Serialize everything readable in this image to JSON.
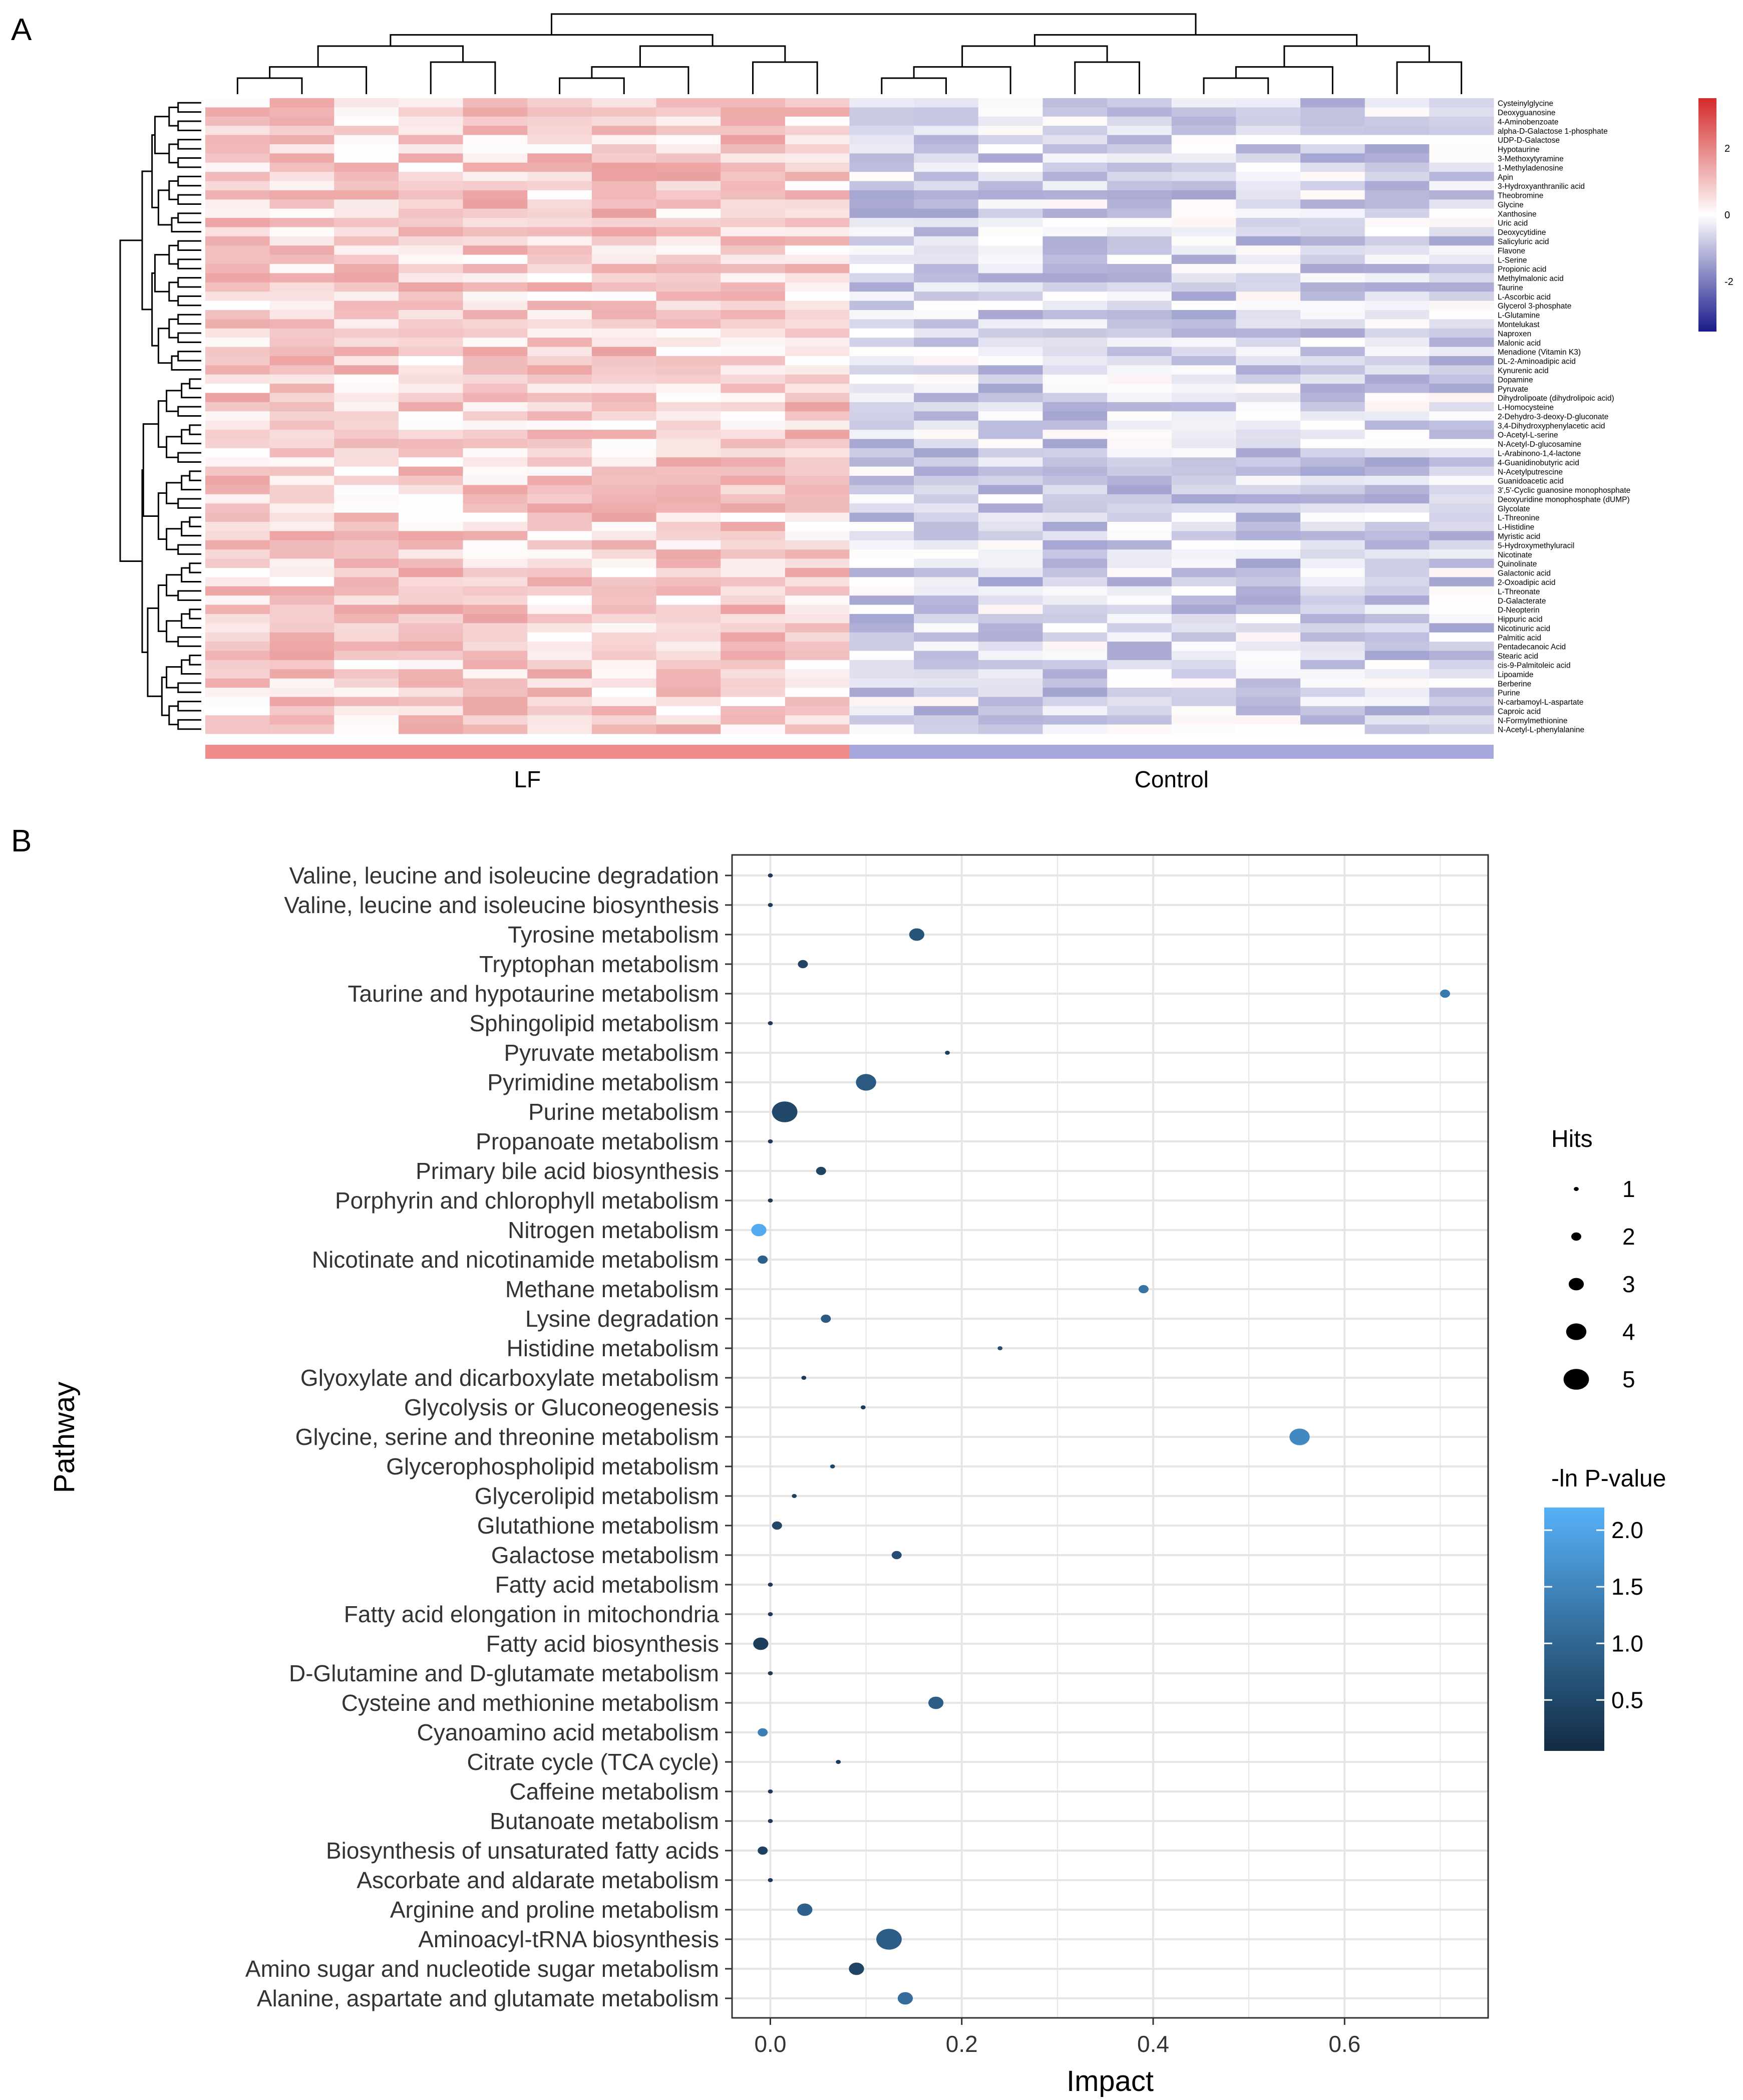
{
  "panels": {
    "a_label": "A",
    "b_label": "B"
  },
  "colors": {
    "high": "#d42a2a",
    "mid": "#ffffff",
    "low": "#1a1a8c",
    "lf_bar": "#f08b8b",
    "control_bar": "#a6a8dd",
    "pval_low": "#132b43",
    "pval_high": "#56b1f7",
    "axis": "#333333",
    "grid": "#e5e5e5"
  },
  "chart_data": [
    {
      "type": "heatmap",
      "title": "",
      "groups": [
        "LF",
        "Control"
      ],
      "columns": 20,
      "group_sizes": [
        10,
        10
      ],
      "legend": {
        "ticks": [
          2,
          0,
          -2
        ],
        "range": [
          -3.5,
          3.5
        ]
      },
      "rows": [
        "Cysteinylglycine",
        "Deoxyguanosine",
        "4-Aminobenzoate",
        "alpha-D-Galactose 1-phosphate",
        "UDP-D-Galactose",
        "Hypotaurine",
        "3-Methoxytyramine",
        "1-Methyladenosine",
        "Apin",
        "3-Hydroxyanthranilic acid",
        "Theobromine",
        "Glycine",
        "Xanthosine",
        "Uric acid",
        "Deoxycytidine",
        "Salicyluric acid",
        "Flavone",
        "L-Serine",
        "Propionic acid",
        "Methylmalonic acid",
        "Taurine",
        "L-Ascorbic acid",
        "Glycerol 3-phosphate",
        "L-Glutamine",
        "Montelukast",
        "Naproxen",
        "Malonic acid",
        "Menadione (Vitamin K3)",
        "DL-2-Aminoadipic acid",
        "Kynurenic acid",
        "Dopamine",
        "Pyruvate",
        "Dihydrolipoate (dihydrolipoic acid)",
        "L-Homocysteine",
        "2-Dehydro-3-deoxy-D-gluconate",
        "3,4-Dihydroxyphenylacetic acid",
        "O-Acetyl-L-serine",
        "N-Acetyl-D-glucosamine",
        "L-Arabinono-1,4-lactone",
        "4-Guanidinobutyric acid",
        "N-Acetylputrescine",
        "Guanidoacetic acid",
        "3',5'-Cyclic guanosine monophosphate",
        "Deoxyuridine monophosphate (dUMP)",
        "Glycolate",
        "L-Threonine",
        "L-Histidine",
        "Myristic acid",
        "5-Hydroxymethyluracil",
        "Nicotinate",
        "Quinolinate",
        "Galactonic acid",
        "2-Oxoadipic acid",
        "L-Threonate",
        "D-Galacterate",
        "D-Neopterin",
        "Hippuric acid",
        "Nicotinuric acid",
        "Palmitic acid",
        "Pentadecanoic Acid",
        "Stearic acid",
        "cis-9-Palmitoleic acid",
        "Lipoamide",
        "Berberine",
        "Purine",
        "N-carbamoyl-L-aspartate",
        "Caproic acid",
        "N-Formylmethionine",
        "N-Acetyl-L-phenylalanine"
      ]
    },
    {
      "type": "scatter",
      "title": "",
      "xlabel": "Impact",
      "ylabel": "Pathway",
      "xlim": [
        -0.04,
        0.75
      ],
      "xticks": [
        0.0,
        0.2,
        0.4,
        0.6
      ],
      "xtick_labels": [
        "0.0",
        "0.2",
        "0.4",
        "0.6"
      ],
      "grid": true,
      "size_legend": {
        "title": "Hits",
        "values": [
          1,
          2,
          3,
          4,
          5
        ]
      },
      "color_legend": {
        "title": "-ln P-value",
        "ticks": [
          2.0,
          1.5,
          1.0,
          0.5
        ],
        "tick_labels": [
          "2.0",
          "1.5",
          "1.0",
          "0.5"
        ],
        "range": [
          0.05,
          2.2
        ]
      },
      "pathways": [
        "Valine, leucine and isoleucine degradation",
        "Valine, leucine and isoleucine biosynthesis",
        "Tyrosine metabolism",
        "Tryptophan metabolism",
        "Taurine and hypotaurine metabolism",
        "Sphingolipid metabolism",
        "Pyruvate metabolism",
        "Pyrimidine metabolism",
        "Purine metabolism",
        "Propanoate metabolism",
        "Primary bile acid biosynthesis",
        "Porphyrin and chlorophyll metabolism",
        "Nitrogen metabolism",
        "Nicotinate and nicotinamide metabolism",
        "Methane metabolism",
        "Lysine degradation",
        "Histidine metabolism",
        "Glyoxylate and dicarboxylate metabolism",
        "Glycolysis or Gluconeogenesis",
        "Glycine, serine and threonine metabolism",
        "Glycerophospholipid metabolism",
        "Glycerolipid metabolism",
        "Glutathione metabolism",
        "Galactose metabolism",
        "Fatty acid metabolism",
        "Fatty acid elongation in mitochondria",
        "Fatty acid biosynthesis",
        "D-Glutamine and D-glutamate metabolism",
        "Cysteine and methionine metabolism",
        "Cyanoamino acid metabolism",
        "Citrate cycle (TCA cycle)",
        "Caffeine metabolism",
        "Butanoate metabolism",
        "Biosynthesis of unsaturated fatty acids",
        "Ascorbate and aldarate metabolism",
        "Arginine and proline metabolism",
        "Aminoacyl-tRNA biosynthesis",
        "Amino sugar and nucleotide sugar metabolism",
        "Alanine, aspartate and glutamate metabolism"
      ],
      "impact": [
        0.0,
        0.0,
        0.153,
        0.034,
        0.705,
        0.0,
        0.185,
        0.1,
        0.015,
        0.0,
        0.053,
        0.0,
        -0.012,
        -0.008,
        0.39,
        0.058,
        0.24,
        0.035,
        0.097,
        0.553,
        0.065,
        0.025,
        0.007,
        0.132,
        0.0,
        0.0,
        -0.01,
        0.0,
        0.173,
        -0.008,
        0.071,
        0.0,
        0.0,
        -0.008,
        0.0,
        0.036,
        0.124,
        0.09,
        0.141
      ],
      "hits": [
        1,
        1,
        3,
        2,
        2,
        1,
        1,
        4,
        5,
        1,
        2,
        1,
        3,
        2,
        2,
        2,
        1,
        1,
        1,
        4,
        1,
        1,
        2,
        2,
        1,
        1,
        3,
        1,
        3,
        2,
        1,
        1,
        1,
        2,
        1,
        3,
        5,
        3,
        3
      ],
      "neg_ln_p": [
        0.3,
        0.3,
        0.7,
        0.45,
        1.3,
        0.3,
        0.4,
        0.8,
        0.5,
        0.3,
        0.45,
        0.3,
        2.1,
        0.9,
        1.2,
        0.8,
        0.6,
        0.3,
        0.3,
        1.55,
        0.5,
        0.4,
        0.5,
        0.6,
        0.3,
        0.3,
        0.35,
        0.3,
        0.85,
        1.4,
        0.3,
        0.3,
        0.3,
        0.4,
        0.3,
        0.9,
        0.85,
        0.45,
        1.1
      ]
    }
  ]
}
